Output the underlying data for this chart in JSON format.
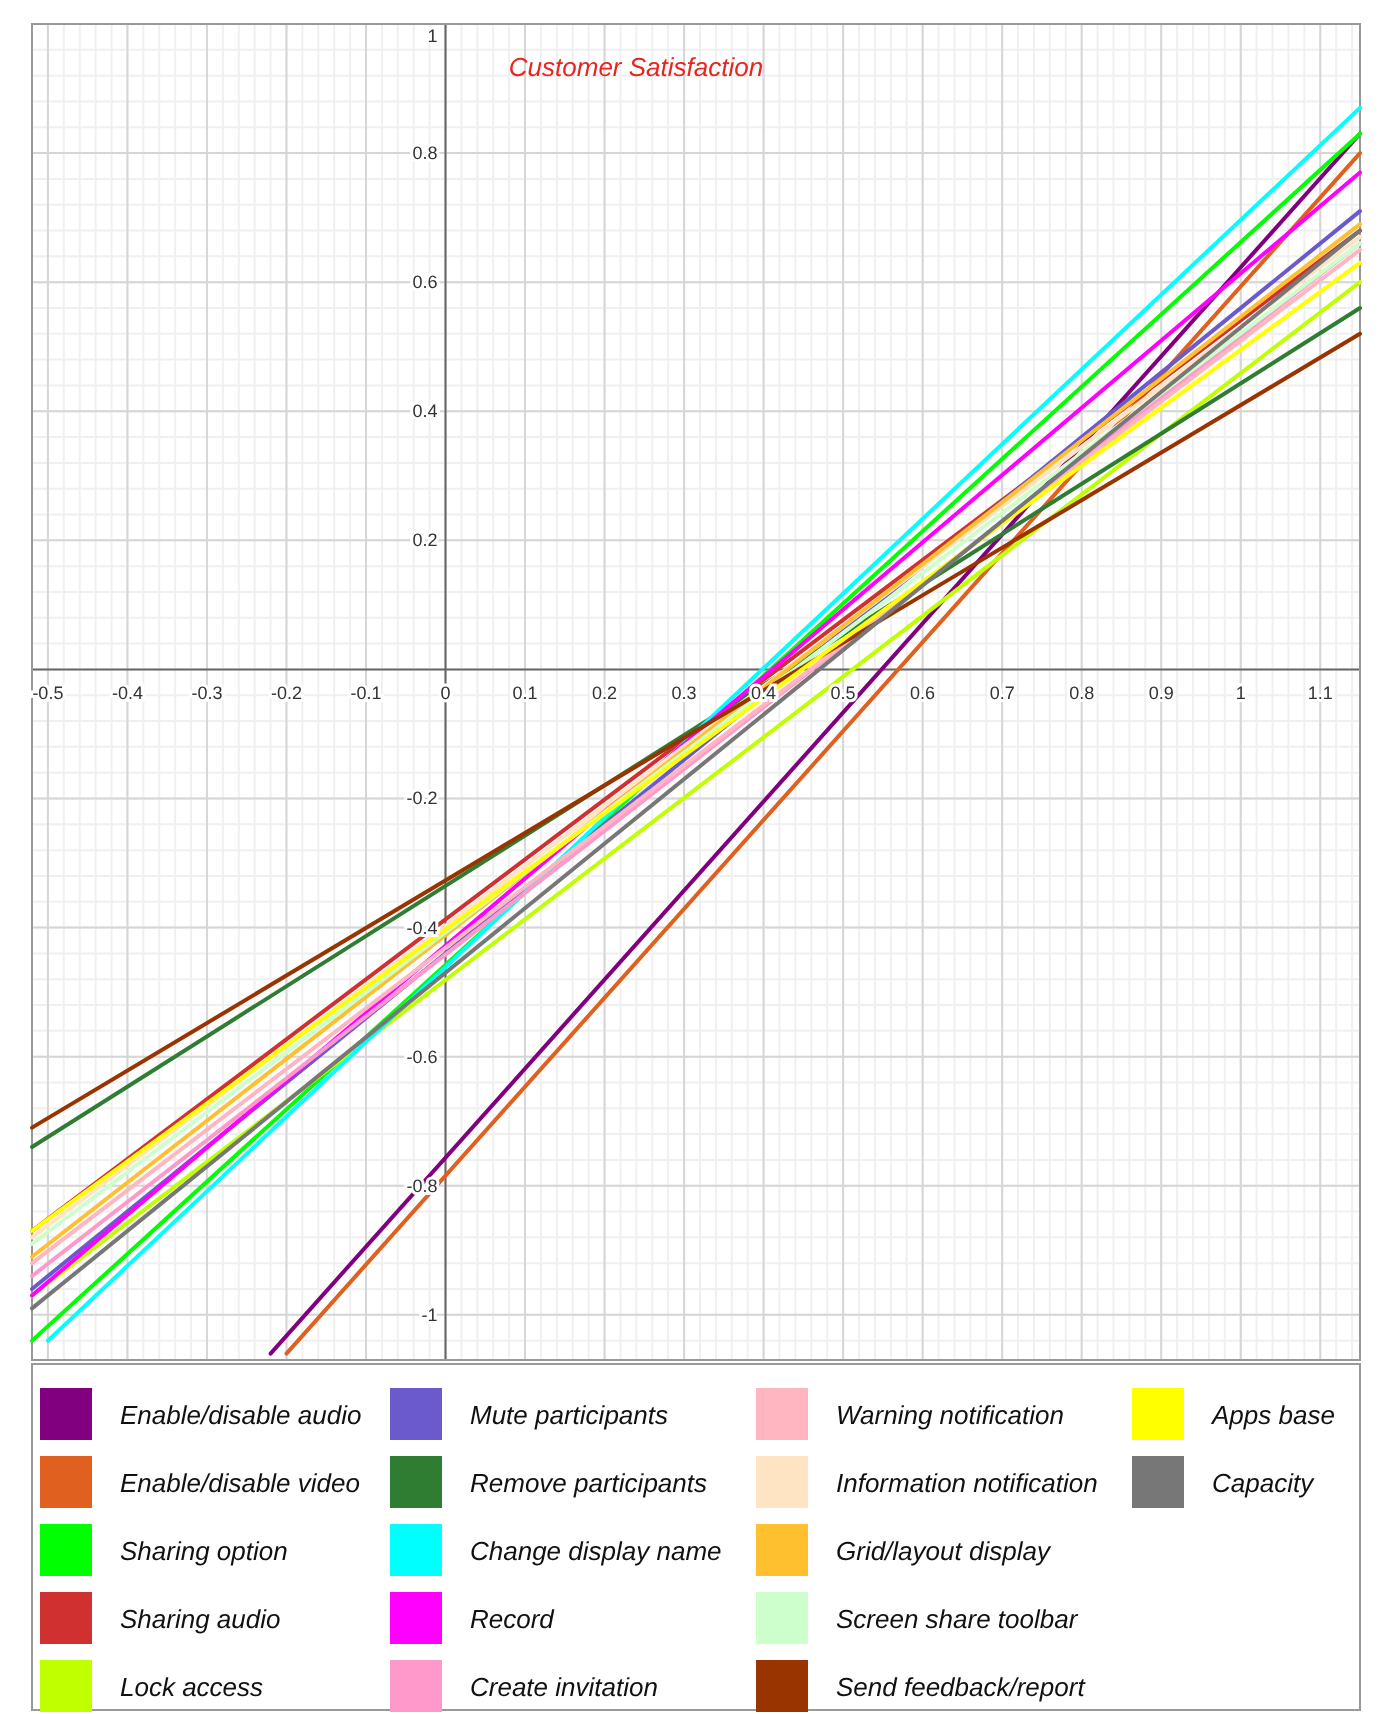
{
  "chart_data": {
    "type": "line",
    "title": "Customer Satisfaction",
    "xlim": [
      -0.52,
      1.15
    ],
    "ylim": [
      -1.07,
      1.0
    ],
    "xticks": [
      -0.5,
      -0.4,
      -0.3,
      -0.2,
      -0.1,
      0,
      0.1,
      0.2,
      0.3,
      0.4,
      0.5,
      0.6,
      0.7,
      0.8,
      0.9,
      1,
      1.1
    ],
    "yticks": [
      -1,
      -0.8,
      -0.6,
      -0.4,
      -0.2,
      0.2,
      0.4,
      0.6,
      0.8,
      1
    ],
    "grid": true,
    "legend": "bottom",
    "marker": "none",
    "line_style": "solid",
    "series": [
      {
        "name": "Enable/disable audio",
        "color": "#800080",
        "x": [
          -0.22,
          1.15
        ],
        "values": [
          -1.06,
          0.83
        ]
      },
      {
        "name": "Enable/disable video",
        "color": "#e06020",
        "x": [
          -0.2,
          1.15
        ],
        "values": [
          -1.06,
          0.8
        ]
      },
      {
        "name": "Sharing option",
        "color": "#00ff00",
        "x": [
          -0.52,
          1.15
        ],
        "values": [
          -1.04,
          0.83
        ]
      },
      {
        "name": "Sharing audio",
        "color": "#d03030",
        "x": [
          -0.52,
          1.15
        ],
        "values": [
          -0.87,
          0.68
        ]
      },
      {
        "name": "Lock access",
        "color": "#c0ff00",
        "x": [
          -0.52,
          1.15
        ],
        "values": [
          -0.97,
          0.6
        ]
      },
      {
        "name": "Mute participants",
        "color": "#6a5acd",
        "x": [
          -0.52,
          1.15
        ],
        "values": [
          -0.96,
          0.71
        ]
      },
      {
        "name": "Remove participants",
        "color": "#2e7d32",
        "x": [
          -0.52,
          1.15
        ],
        "values": [
          -0.74,
          0.56
        ]
      },
      {
        "name": "Change display name",
        "color": "#00ffff",
        "x": [
          -0.5,
          1.15
        ],
        "values": [
          -1.04,
          0.87
        ]
      },
      {
        "name": "Record",
        "color": "#ff00ff",
        "x": [
          -0.52,
          1.15
        ],
        "values": [
          -0.97,
          0.77
        ]
      },
      {
        "name": "Create invitation",
        "color": "#ff99cc",
        "x": [
          -0.52,
          1.15
        ],
        "values": [
          -0.94,
          0.66
        ]
      },
      {
        "name": "Warning notification",
        "color": "#ffb6c1",
        "x": [
          -0.52,
          1.15
        ],
        "values": [
          -0.92,
          0.65
        ]
      },
      {
        "name": "Information notification",
        "color": "#ffe4c4",
        "x": [
          -0.52,
          1.15
        ],
        "values": [
          -0.88,
          0.67
        ]
      },
      {
        "name": "Grid/layout display",
        "color": "#ffc030",
        "x": [
          -0.52,
          1.15
        ],
        "values": [
          -0.91,
          0.69
        ]
      },
      {
        "name": "Screen share toolbar",
        "color": "#ccffcc",
        "x": [
          -0.52,
          1.15
        ],
        "values": [
          -0.89,
          0.66
        ]
      },
      {
        "name": "Send feedback/report",
        "color": "#993300",
        "x": [
          -0.52,
          1.15
        ],
        "values": [
          -0.71,
          0.52
        ]
      },
      {
        "name": "Apps base",
        "color": "#ffff00",
        "x": [
          -0.52,
          1.15
        ],
        "values": [
          -0.87,
          0.63
        ]
      },
      {
        "name": "Capacity",
        "color": "#777777",
        "x": [
          -0.52,
          1.15
        ],
        "values": [
          -0.99,
          0.68
        ]
      }
    ]
  }
}
